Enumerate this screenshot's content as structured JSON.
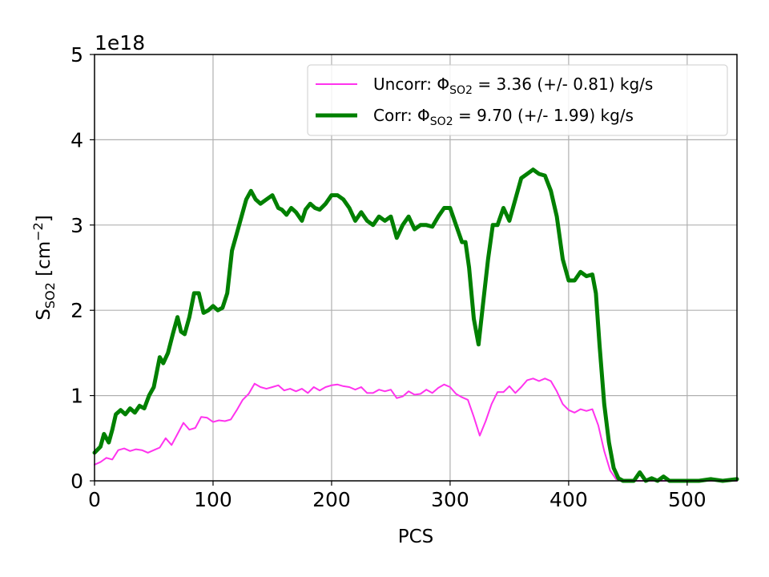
{
  "chart_data": {
    "type": "line",
    "offset_text": "1e18",
    "xlabel": "PCS",
    "ylabel": {
      "main": "S",
      "sub": "SO2",
      "unit_prefix": " [cm",
      "unit_sup": "−2",
      "unit_suffix": "]"
    },
    "xlim": [
      0,
      542
    ],
    "ylim": [
      0,
      5
    ],
    "xticks": [
      0,
      100,
      200,
      300,
      400,
      500
    ],
    "yticks": [
      0,
      1,
      2,
      3,
      4,
      5
    ],
    "grid": true,
    "legend_placement": "top-right",
    "series": [
      {
        "name": "uncorr",
        "legend": {
          "prefix": "Uncorr: Φ",
          "sub": "SO2",
          "suffix": " = 3.36 (+/- 0.81) kg/s"
        },
        "color": "#ff33ee",
        "width": 2,
        "x": [
          0,
          5,
          10,
          15,
          20,
          25,
          30,
          35,
          40,
          45,
          50,
          55,
          60,
          65,
          70,
          75,
          80,
          85,
          90,
          95,
          100,
          105,
          110,
          115,
          120,
          125,
          130,
          135,
          140,
          145,
          150,
          155,
          160,
          165,
          170,
          175,
          180,
          185,
          190,
          195,
          200,
          205,
          210,
          215,
          220,
          225,
          230,
          235,
          240,
          245,
          250,
          255,
          260,
          265,
          270,
          275,
          280,
          285,
          290,
          295,
          300,
          305,
          310,
          315,
          320,
          325,
          330,
          335,
          340,
          345,
          350,
          355,
          360,
          365,
          370,
          375,
          380,
          385,
          390,
          395,
          400,
          405,
          410,
          415,
          420,
          425,
          430,
          435,
          440,
          445,
          450,
          455,
          460,
          470,
          480,
          490,
          500,
          510,
          520,
          530,
          542
        ],
        "y": [
          0.19,
          0.22,
          0.27,
          0.25,
          0.36,
          0.38,
          0.35,
          0.37,
          0.36,
          0.33,
          0.36,
          0.39,
          0.5,
          0.42,
          0.55,
          0.68,
          0.6,
          0.62,
          0.75,
          0.74,
          0.69,
          0.71,
          0.7,
          0.72,
          0.83,
          0.95,
          1.02,
          1.14,
          1.1,
          1.08,
          1.1,
          1.12,
          1.06,
          1.08,
          1.05,
          1.08,
          1.03,
          1.1,
          1.06,
          1.1,
          1.12,
          1.13,
          1.11,
          1.1,
          1.07,
          1.1,
          1.03,
          1.03,
          1.07,
          1.05,
          1.07,
          0.97,
          0.99,
          1.05,
          1.01,
          1.02,
          1.07,
          1.03,
          1.09,
          1.13,
          1.1,
          1.02,
          0.98,
          0.95,
          0.75,
          0.53,
          0.7,
          0.9,
          1.04,
          1.04,
          1.11,
          1.03,
          1.1,
          1.18,
          1.2,
          1.17,
          1.2,
          1.17,
          1.05,
          0.9,
          0.83,
          0.8,
          0.84,
          0.82,
          0.84,
          0.65,
          0.35,
          0.12,
          0.02,
          0.0,
          0.0,
          0.0,
          0.0,
          0.0,
          0.0,
          0.0,
          0.0,
          0.0,
          0.0,
          0.0,
          0.0
        ]
      },
      {
        "name": "corr",
        "legend": {
          "prefix": "Corr: Φ",
          "sub": "SO2",
          "suffix": " = 9.70 (+/- 1.99) kg/s"
        },
        "color": "#008000",
        "width": 5,
        "x": [
          0,
          5,
          8,
          12,
          15,
          18,
          22,
          26,
          30,
          34,
          38,
          42,
          46,
          50,
          55,
          58,
          62,
          66,
          70,
          73,
          76,
          80,
          84,
          88,
          92,
          96,
          100,
          104,
          108,
          112,
          116,
          120,
          124,
          128,
          132,
          136,
          140,
          145,
          150,
          155,
          158,
          162,
          166,
          170,
          175,
          178,
          182,
          186,
          190,
          195,
          200,
          205,
          210,
          215,
          220,
          225,
          230,
          235,
          240,
          245,
          250,
          255,
          260,
          265,
          270,
          275,
          280,
          285,
          290,
          295,
          300,
          305,
          310,
          313,
          316,
          320,
          324,
          328,
          332,
          336,
          340,
          345,
          350,
          355,
          360,
          365,
          370,
          375,
          380,
          385,
          390,
          395,
          400,
          405,
          410,
          415,
          420,
          423,
          426,
          430,
          434,
          438,
          442,
          446,
          450,
          455,
          460,
          465,
          470,
          475,
          480,
          485,
          490,
          500,
          510,
          520,
          530,
          542
        ],
        "y": [
          0.33,
          0.4,
          0.55,
          0.45,
          0.6,
          0.78,
          0.83,
          0.78,
          0.85,
          0.8,
          0.88,
          0.85,
          1.0,
          1.1,
          1.45,
          1.38,
          1.5,
          1.72,
          1.92,
          1.75,
          1.72,
          1.92,
          2.2,
          2.2,
          1.97,
          2.0,
          2.05,
          2.0,
          2.03,
          2.2,
          2.7,
          2.9,
          3.1,
          3.3,
          3.4,
          3.3,
          3.25,
          3.3,
          3.35,
          3.2,
          3.18,
          3.12,
          3.2,
          3.15,
          3.05,
          3.18,
          3.25,
          3.2,
          3.18,
          3.25,
          3.35,
          3.35,
          3.3,
          3.2,
          3.05,
          3.15,
          3.05,
          3.0,
          3.1,
          3.05,
          3.1,
          2.85,
          3.0,
          3.1,
          2.95,
          3.0,
          3.0,
          2.98,
          3.1,
          3.2,
          3.2,
          3.0,
          2.8,
          2.8,
          2.5,
          1.9,
          1.6,
          2.1,
          2.6,
          3.0,
          3.0,
          3.2,
          3.05,
          3.3,
          3.55,
          3.6,
          3.65,
          3.6,
          3.58,
          3.4,
          3.1,
          2.6,
          2.35,
          2.35,
          2.45,
          2.4,
          2.42,
          2.2,
          1.6,
          0.9,
          0.45,
          0.15,
          0.03,
          0.0,
          0.0,
          0.0,
          0.1,
          0.0,
          0.03,
          0.0,
          0.05,
          0.0,
          0.0,
          0.0,
          0.0,
          0.02,
          0.0,
          0.02
        ]
      }
    ]
  }
}
